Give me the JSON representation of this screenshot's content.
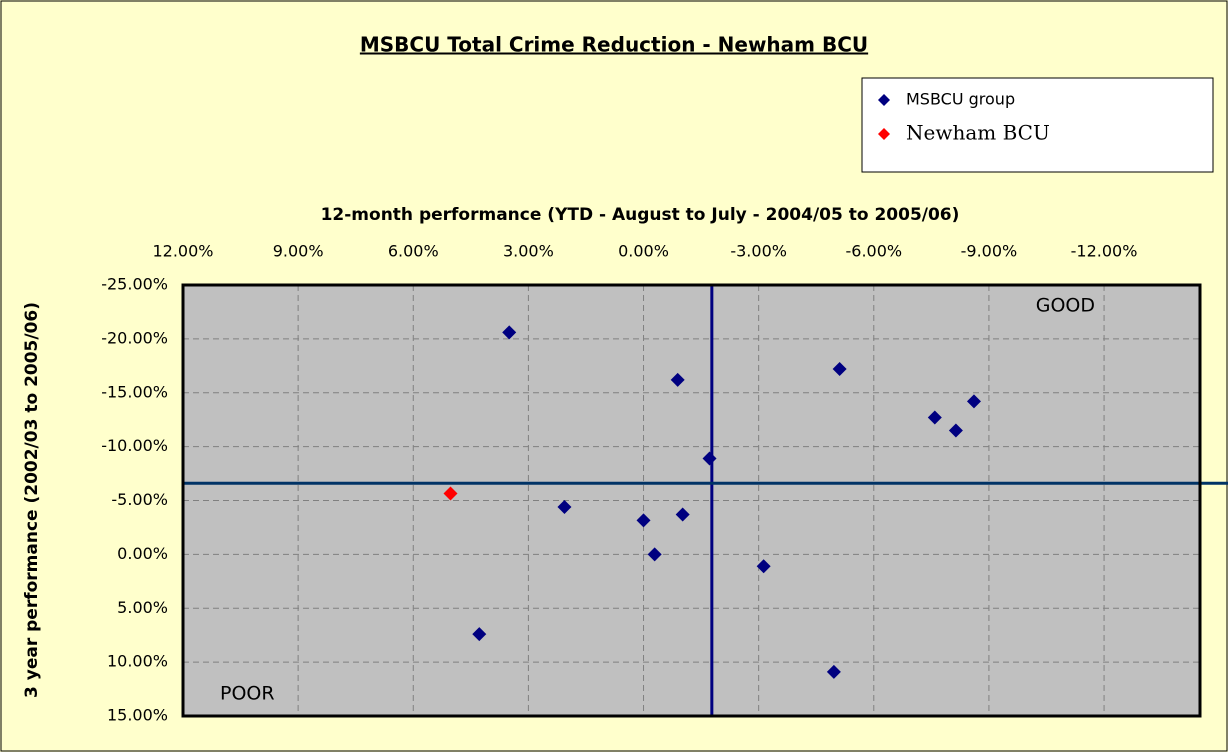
{
  "chart_data": {
    "type": "scatter",
    "title": "MSBCU Total Crime Reduction - Newham BCU",
    "x_label": "12-month performance (YTD - August to July - 2004/05 to 2005/06)",
    "y_label": "3 year performance (2002/03 to 2005/06)",
    "annotations": [
      "GOOD",
      "POOR"
    ],
    "xlim": [
      12,
      -14.5
    ],
    "ylim": [
      -25,
      15
    ],
    "xticks": [
      {
        "value": 12,
        "label": "12.00%"
      },
      {
        "value": 9,
        "label": "9.00%"
      },
      {
        "value": 6,
        "label": "6.00%"
      },
      {
        "value": 3,
        "label": "3.00%"
      },
      {
        "value": 0,
        "label": "0.00%"
      },
      {
        "value": -3,
        "label": "-3.00%"
      },
      {
        "value": -6,
        "label": "-6.00%"
      },
      {
        "value": -9,
        "label": "-9.00%"
      },
      {
        "value": -12,
        "label": "-12.00%"
      }
    ],
    "yticks": [
      {
        "value": -25,
        "label": "-25.00%"
      },
      {
        "value": -20,
        "label": "-20.00%"
      },
      {
        "value": -15,
        "label": "-15.00%"
      },
      {
        "value": -10,
        "label": "-10.00%"
      },
      {
        "value": -5,
        "label": "-5.00%"
      },
      {
        "value": 0,
        "label": "0.00%"
      },
      {
        "value": 5,
        "label": "5.00%"
      },
      {
        "value": 10,
        "label": "10.00%"
      },
      {
        "value": 15,
        "label": "15.00%"
      }
    ],
    "grid": true,
    "x_ref": -1.78,
    "y_ref": -6.6,
    "series": [
      {
        "name": "MSBCU group",
        "color": "#000080",
        "x": [
          3.5,
          -0.89,
          -5.11,
          -7.59,
          -8.61,
          -8.14,
          -1.72,
          2.06,
          0.0,
          -1.02,
          -0.29,
          -3.13,
          4.28,
          -4.96
        ],
        "values": [
          -20.6,
          -16.2,
          -17.2,
          -12.7,
          -14.2,
          -11.5,
          -8.9,
          -4.4,
          -3.15,
          -3.7,
          0.0,
          1.1,
          7.4,
          10.9
        ]
      },
      {
        "name": "Newham BCU",
        "color": "#ff0000",
        "x": [
          5.03
        ],
        "values": [
          -5.65
        ]
      }
    ]
  }
}
